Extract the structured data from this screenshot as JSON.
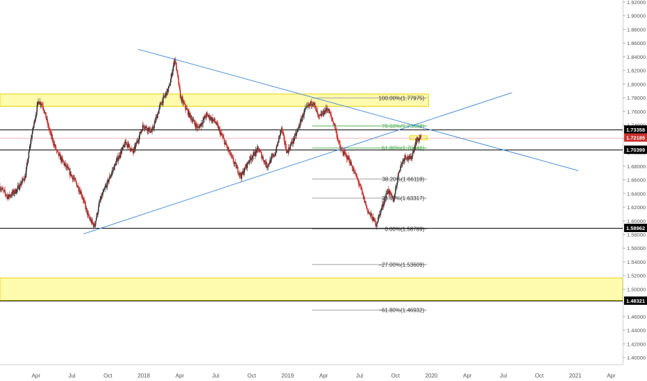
{
  "colors": {
    "background": "#ffffff",
    "up_candle": "#3a3a3a",
    "down_candle": "#c9302c",
    "trendline": "#4a8fd6",
    "zone_fill": "#fff86b",
    "zone_border": "#e8d300",
    "fib_line": "#9e9e9e",
    "fib_green": "#4caf50",
    "hline": "#000000",
    "price_line": "#e57373",
    "current_badge": "#c9302c",
    "axis_text": "#555555"
  },
  "chart_data": {
    "type": "candlestick",
    "title": "",
    "xlabel": "",
    "ylabel": "",
    "ylim": [
      1.39,
      1.923
    ],
    "yticks": [
      1.4,
      1.42,
      1.44,
      1.46,
      1.48,
      1.5,
      1.52,
      1.54,
      1.56,
      1.58,
      1.6,
      1.62,
      1.64,
      1.66,
      1.68,
      1.7,
      1.72,
      1.74,
      1.76,
      1.78,
      1.8,
      1.82,
      1.84,
      1.86,
      1.88,
      1.9,
      1.92
    ],
    "ytick_labels": [
      "1.40000",
      "1.42000",
      "1.44000",
      "1.46000",
      "1.48000",
      "1.50000",
      "1.52000",
      "1.54000",
      "1.56000",
      "1.58000",
      "1.60000",
      "1.62000",
      "1.64000",
      "1.66000",
      "1.68000",
      "1.70000",
      "1.72000",
      "1.74000",
      "1.76000",
      "1.78000",
      "1.80000",
      "1.82000",
      "1.84000",
      "1.86000",
      "1.88000",
      "1.90000",
      "1.92000"
    ],
    "xlim": [
      2017.0,
      2021.33
    ],
    "xticks": [
      {
        "x": 2017.25,
        "label": "Apr"
      },
      {
        "x": 2017.5,
        "label": "Jul"
      },
      {
        "x": 2017.75,
        "label": "Oct"
      },
      {
        "x": 2018.0,
        "label": "2018"
      },
      {
        "x": 2018.25,
        "label": "Apr"
      },
      {
        "x": 2018.5,
        "label": "Jul"
      },
      {
        "x": 2018.75,
        "label": "Oct"
      },
      {
        "x": 2019.0,
        "label": "2019"
      },
      {
        "x": 2019.25,
        "label": "Apr"
      },
      {
        "x": 2019.5,
        "label": "Jul"
      },
      {
        "x": 2019.75,
        "label": "Oct"
      },
      {
        "x": 2020.0,
        "label": "2020"
      },
      {
        "x": 2020.25,
        "label": "Apr"
      },
      {
        "x": 2020.5,
        "label": "Jul"
      },
      {
        "x": 2020.75,
        "label": "Oct"
      },
      {
        "x": 2021.0,
        "label": "2021"
      },
      {
        "x": 2021.25,
        "label": "Apr"
      }
    ],
    "price_path": [
      [
        2017.0,
        1.65
      ],
      [
        2017.06,
        1.635
      ],
      [
        2017.12,
        1.645
      ],
      [
        2017.18,
        1.665
      ],
      [
        2017.22,
        1.72
      ],
      [
        2017.27,
        1.775
      ],
      [
        2017.3,
        1.77
      ],
      [
        2017.35,
        1.73
      ],
      [
        2017.4,
        1.7
      ],
      [
        2017.46,
        1.68
      ],
      [
        2017.52,
        1.66
      ],
      [
        2017.57,
        1.64
      ],
      [
        2017.62,
        1.605
      ],
      [
        2017.66,
        1.592
      ],
      [
        2017.7,
        1.63
      ],
      [
        2017.76,
        1.66
      ],
      [
        2017.82,
        1.69
      ],
      [
        2017.88,
        1.715
      ],
      [
        2017.93,
        1.7
      ],
      [
        2018.0,
        1.74
      ],
      [
        2018.06,
        1.73
      ],
      [
        2018.12,
        1.77
      ],
      [
        2018.18,
        1.795
      ],
      [
        2018.22,
        1.838
      ],
      [
        2018.26,
        1.78
      ],
      [
        2018.32,
        1.755
      ],
      [
        2018.38,
        1.735
      ],
      [
        2018.44,
        1.755
      ],
      [
        2018.5,
        1.745
      ],
      [
        2018.56,
        1.718
      ],
      [
        2018.62,
        1.69
      ],
      [
        2018.68,
        1.665
      ],
      [
        2018.74,
        1.69
      ],
      [
        2018.8,
        1.705
      ],
      [
        2018.86,
        1.68
      ],
      [
        2018.92,
        1.7
      ],
      [
        2018.96,
        1.735
      ],
      [
        2019.0,
        1.7
      ],
      [
        2019.06,
        1.725
      ],
      [
        2019.12,
        1.76
      ],
      [
        2019.18,
        1.775
      ],
      [
        2019.22,
        1.75
      ],
      [
        2019.28,
        1.765
      ],
      [
        2019.33,
        1.74
      ],
      [
        2019.37,
        1.705
      ],
      [
        2019.43,
        1.69
      ],
      [
        2019.5,
        1.655
      ],
      [
        2019.56,
        1.615
      ],
      [
        2019.62,
        1.595
      ],
      [
        2019.66,
        1.62
      ],
      [
        2019.7,
        1.645
      ],
      [
        2019.74,
        1.63
      ],
      [
        2019.78,
        1.675
      ],
      [
        2019.82,
        1.695
      ],
      [
        2019.86,
        1.69
      ],
      [
        2019.9,
        1.718
      ],
      [
        2019.93,
        1.72185
      ]
    ],
    "current_price": 1.72185,
    "current_price_label": "1.72185",
    "horizontal_lines": [
      {
        "y": 1.73358,
        "label": "1.73358"
      },
      {
        "y": 1.70399,
        "label": "1.70399"
      },
      {
        "y": 1.58962,
        "label": "1.58962"
      },
      {
        "y": 1.48321,
        "label": "1.48321"
      }
    ],
    "zones": [
      {
        "x_from": 2017.0,
        "x_to": 2019.98,
        "y_from": 1.7675,
        "y_to": 1.7855
      },
      {
        "x_from": 2017.0,
        "x_to": 2021.33,
        "y_from": 1.4835,
        "y_to": 1.5165
      },
      {
        "x_from": 2019.85,
        "x_to": 2019.97,
        "y_from": 1.7185,
        "y_to": 1.7245
      }
    ],
    "trendlines": [
      {
        "x1": 2017.58,
        "y1": 1.5808,
        "x2": 2020.56,
        "y2": 1.7875
      },
      {
        "x1": 2017.96,
        "y1": 1.851,
        "x2": 2021.02,
        "y2": 1.6735
      }
    ],
    "fib_x_from": 2019.17,
    "fib_x_to": 2019.97,
    "fib_levels": [
      {
        "y": 1.77975,
        "label": "100.00%(1.77975)",
        "green": false
      },
      {
        "y": 1.73869,
        "label": "78.60%(1.73869)",
        "green": true
      },
      {
        "y": 1.70646,
        "label": "61.80%(1.70646)",
        "green": true
      },
      {
        "y": 1.66118,
        "label": "38.20%(1.66118)",
        "green": false
      },
      {
        "y": 1.63317,
        "label": "23.60%(1.63317)",
        "green": false
      },
      {
        "y": 1.58789,
        "label": "0.00%(1.58789)",
        "green": false
      },
      {
        "y": 1.53609,
        "label": "−27.00%(1.53609)",
        "green": false
      },
      {
        "y": 1.46932,
        "label": "−61.80%(1.46932)",
        "green": false
      }
    ]
  }
}
